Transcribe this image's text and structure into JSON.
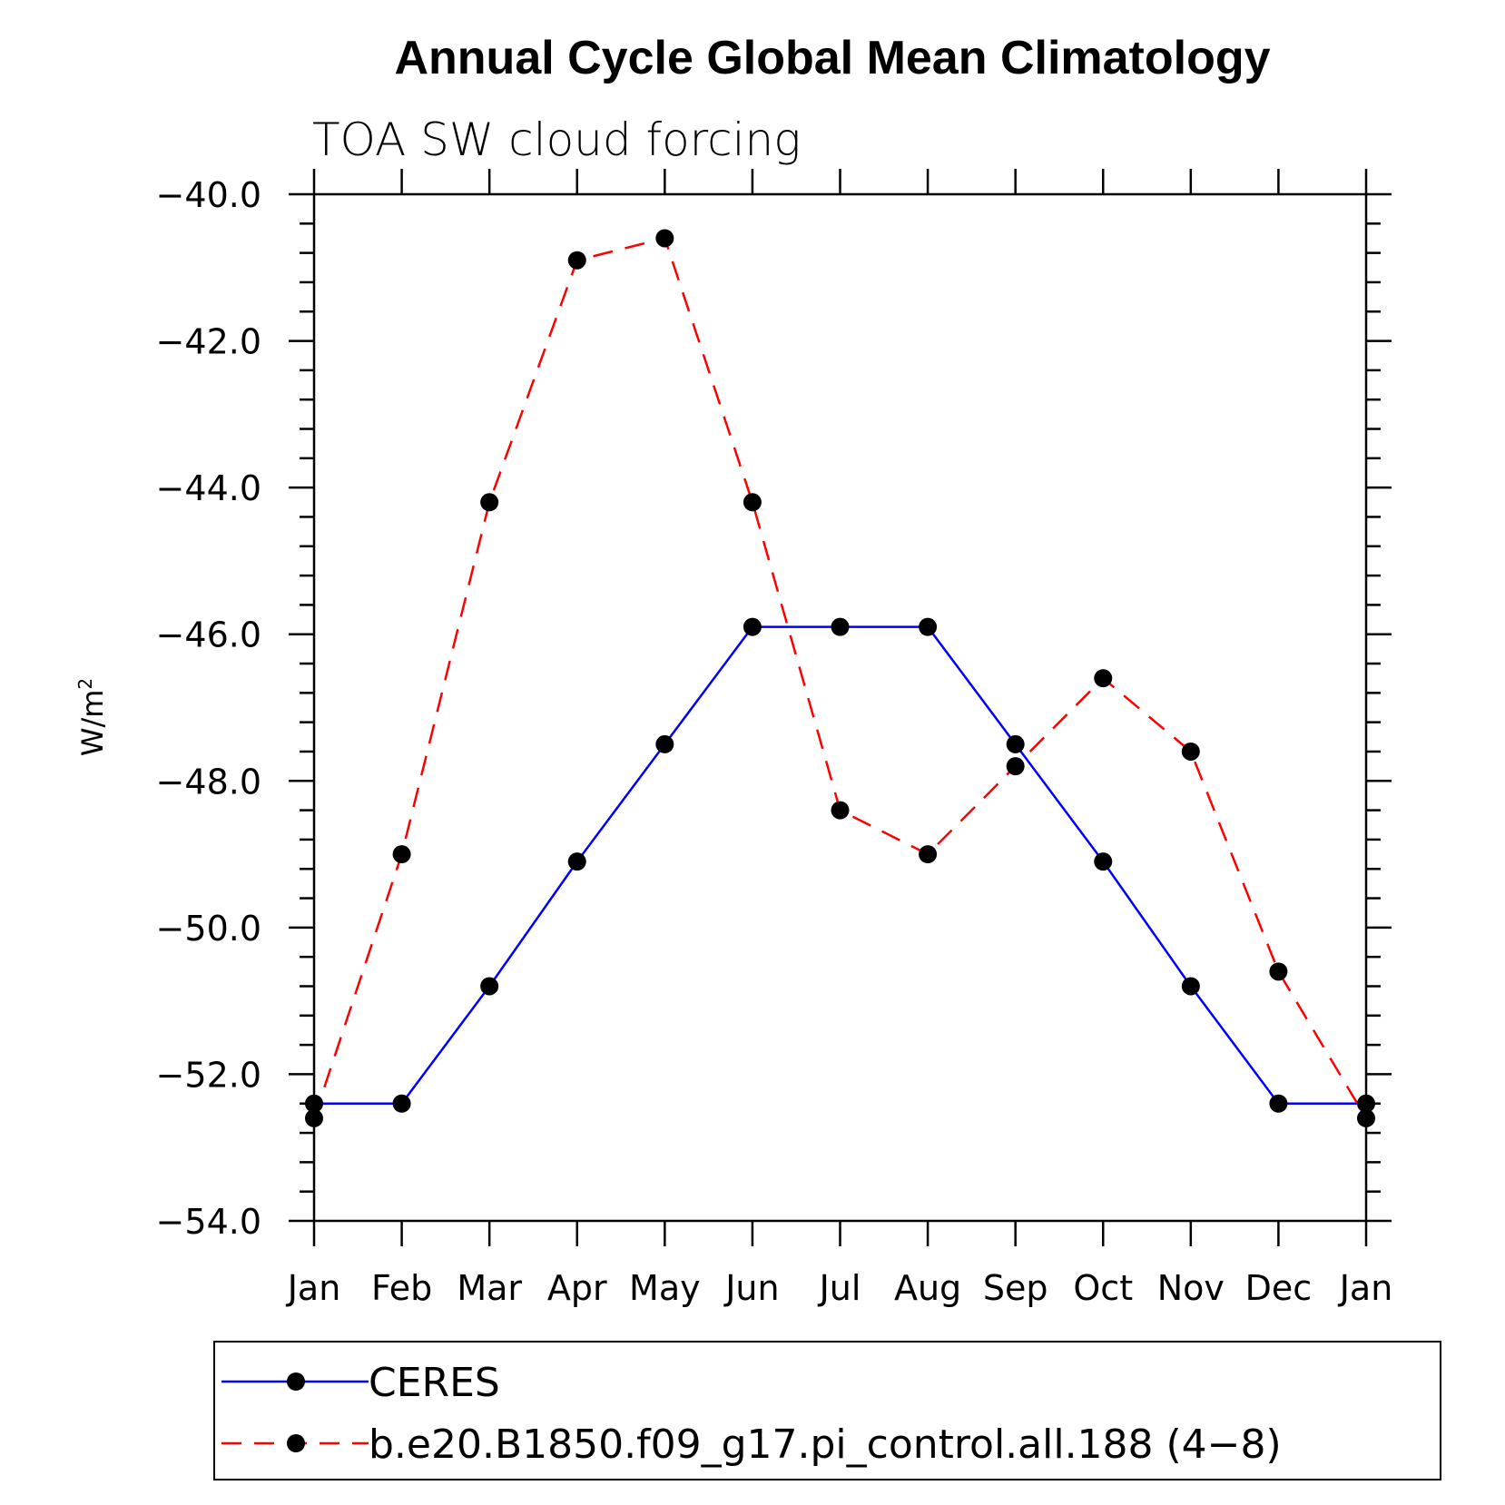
{
  "chart_data": {
    "type": "line",
    "title": "Annual Cycle Global Mean Climatology",
    "subtitle": "TOA SW cloud forcing",
    "xlabel": "",
    "ylabel": "W/m",
    "ylabel_sup": "2",
    "categories": [
      "Jan",
      "Feb",
      "Mar",
      "Apr",
      "May",
      "Jun",
      "Jul",
      "Aug",
      "Sep",
      "Oct",
      "Nov",
      "Dec",
      "Jan"
    ],
    "ylim": [
      -54.0,
      -40.0
    ],
    "yticks": [
      -40.0,
      -42.0,
      -44.0,
      -46.0,
      -48.0,
      -50.0,
      -52.0,
      -54.0
    ],
    "ytick_labels": [
      "−40.0",
      "−42.0",
      "−44.0",
      "−46.0",
      "−48.0",
      "−50.0",
      "−52.0",
      "−54.0"
    ],
    "grid": false,
    "legend_position": "bottom",
    "series": [
      {
        "name": "CERES",
        "color": "#0000ff",
        "dash": "solid",
        "marker": "filled-circle",
        "values": [
          -52.4,
          -52.4,
          -50.8,
          -49.1,
          -47.5,
          -45.9,
          -45.9,
          -45.9,
          -47.5,
          -49.1,
          -50.8,
          -52.4,
          -52.4
        ]
      },
      {
        "name": "b.e20.B1850.f09_g17.pi_control.all.188 (4−8)",
        "color": "#ff0000",
        "dash": "dashed",
        "marker": "filled-circle",
        "values": [
          -52.6,
          -49.0,
          -44.2,
          -40.9,
          -40.6,
          -44.2,
          -48.4,
          -49.0,
          -47.8,
          -46.6,
          -47.6,
          -50.6,
          -52.6
        ]
      }
    ]
  }
}
